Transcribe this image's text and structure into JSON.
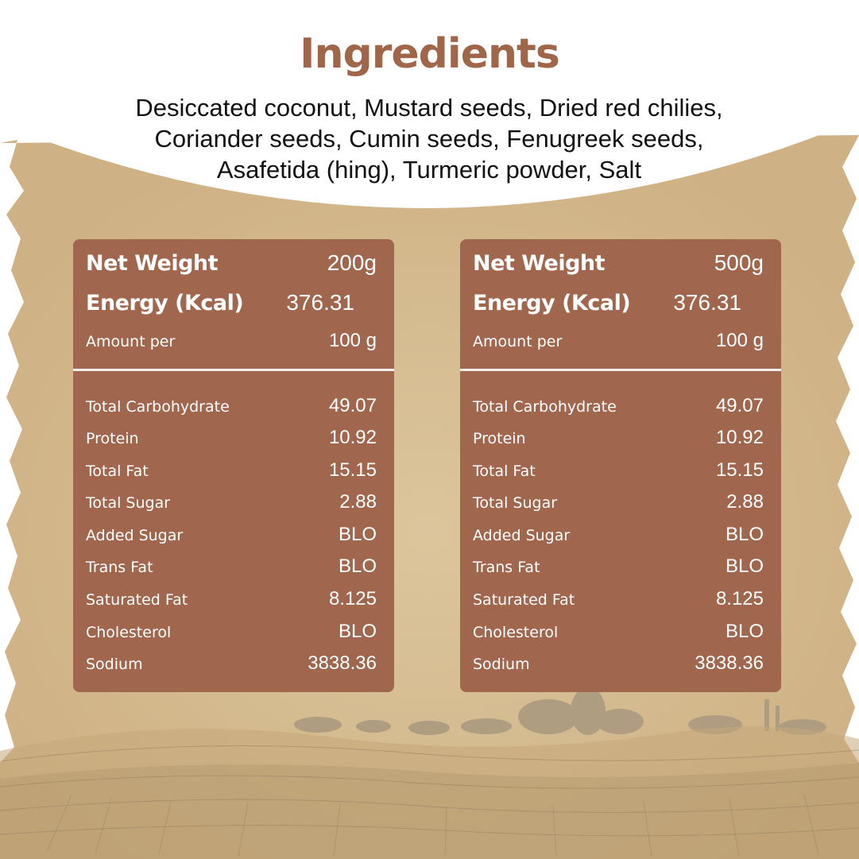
{
  "title": "Ingredients",
  "ingredients_lines": [
    "Desiccated coconut, Mustard seeds, Dried red chilies,",
    "Coriander seeds, Cumin seeds, Fenugreek seeds,",
    "Asafetida (hing), Turmeric powder, Salt"
  ],
  "panels": [
    {
      "net_weight_label": "Net Weight",
      "net_weight_value": "200g",
      "energy_label": "Energy (Kcal)",
      "energy_value": "376.31",
      "amount_label": "Amount per",
      "amount_value": "100 g",
      "nutrients": [
        {
          "label": "Total Carbohydrate",
          "value": "49.07"
        },
        {
          "label": "Protein",
          "value": "10.92"
        },
        {
          "label": "Total Fat",
          "value": "15.15"
        },
        {
          "label": "Total Sugar",
          "value": "2.88"
        },
        {
          "label": "Added Sugar",
          "value": "BLO"
        },
        {
          "label": "Trans Fat",
          "value": "BLO"
        },
        {
          "label": "Saturated Fat",
          "value": "8.125"
        },
        {
          "label": "Cholesterol",
          "value": "BLO"
        },
        {
          "label": "Sodium",
          "value": "3838.36"
        }
      ]
    },
    {
      "net_weight_label": "Net Weight",
      "net_weight_value": "500g",
      "energy_label": "Energy (Kcal)",
      "energy_value": "376.31",
      "amount_label": "Amount per",
      "amount_value": "100 g",
      "nutrients": [
        {
          "label": "Total Carbohydrate",
          "value": "49.07"
        },
        {
          "label": "Protein",
          "value": "10.92"
        },
        {
          "label": "Total Fat",
          "value": "15.15"
        },
        {
          "label": "Total Sugar",
          "value": "2.88"
        },
        {
          "label": "Added Sugar",
          "value": "BLO"
        },
        {
          "label": "Trans Fat",
          "value": "BLO"
        },
        {
          "label": "Saturated Fat",
          "value": "8.125"
        },
        {
          "label": "Cholesterol",
          "value": "BLO"
        },
        {
          "label": "Sodium",
          "value": "3838.36"
        }
      ]
    }
  ],
  "colors": {
    "title": "#a0664a",
    "panel": "#a0664e",
    "background": "#d8c095",
    "header_white": "#ffffff"
  }
}
